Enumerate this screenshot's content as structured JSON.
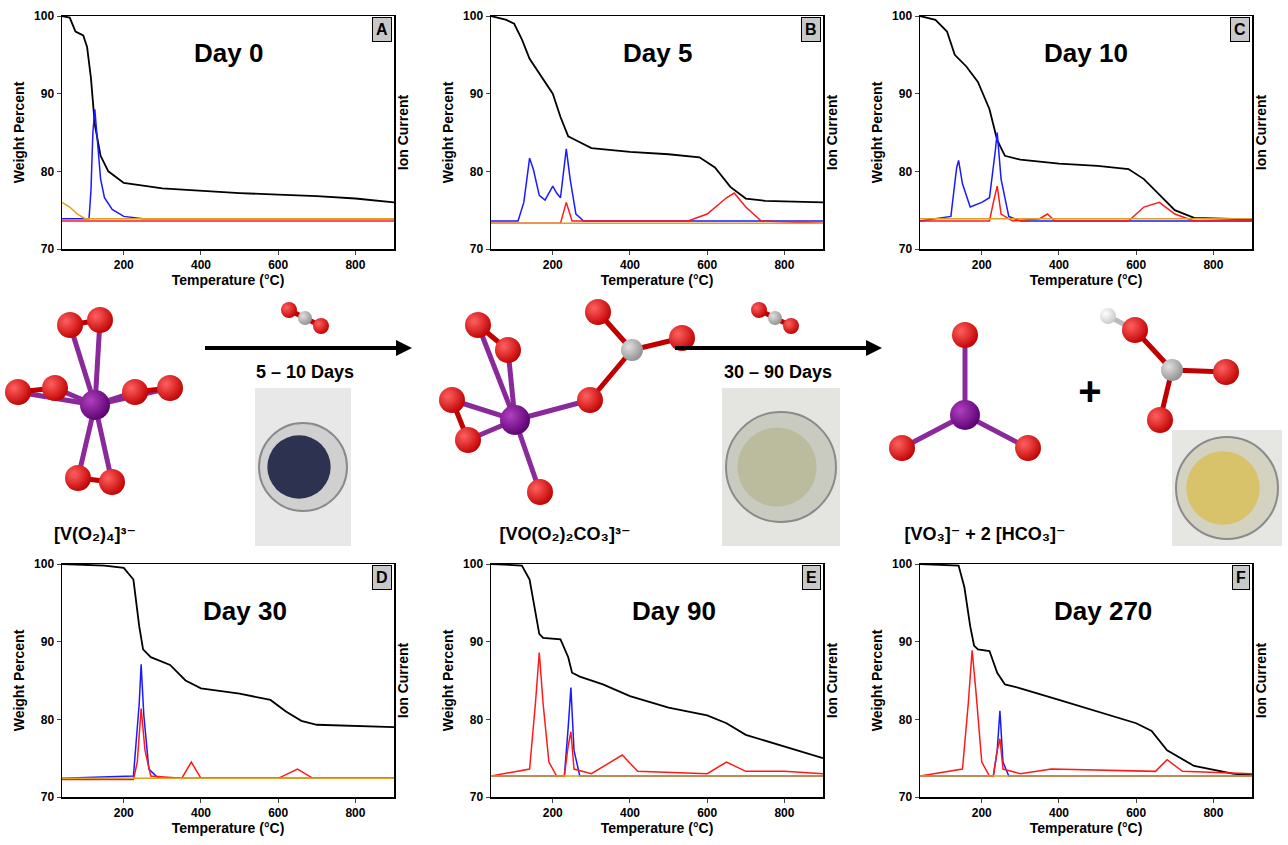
{
  "chart_data": [
    {
      "type": "line",
      "title": "Day 0",
      "panel": "A",
      "x_label": "Temperature (°C)",
      "y_label": "Weight Percent",
      "y2_label": "Ion Current",
      "xlim": [
        40,
        900
      ],
      "xticks": [
        200,
        400,
        600,
        800
      ],
      "ylim": [
        70,
        100
      ],
      "yticks": [
        70,
        80,
        90,
        100
      ],
      "y2lim": [
        0,
        100
      ],
      "y2ticks": [],
      "series": [
        {
          "color": "#000000",
          "x": [
            40,
            60,
            75,
            95,
            105,
            115,
            125,
            140,
            160,
            200,
            300,
            400,
            500,
            600,
            700,
            800,
            900
          ],
          "values": [
            100,
            99.8,
            98,
            97.5,
            96,
            92,
            86,
            82,
            80,
            78.5,
            77.8,
            77.5,
            77.2,
            77,
            76.8,
            76.5,
            76
          ]
        },
        {
          "color": "#1a1aff",
          "axis": "y2",
          "x": [
            40,
            110,
            115,
            120,
            125,
            130,
            140,
            150,
            170,
            200,
            250,
            900
          ],
          "values": [
            13,
            13,
            25,
            50,
            60,
            50,
            30,
            22,
            17,
            14,
            13,
            13
          ]
        },
        {
          "color": "#ff1a1a",
          "axis": "y2",
          "x": [
            40,
            900
          ],
          "values": [
            12,
            12
          ]
        },
        {
          "color": "#e0a020",
          "axis": "y2",
          "x": [
            40,
            60,
            80,
            100,
            900
          ],
          "values": [
            20,
            18,
            15,
            13,
            13
          ]
        }
      ]
    },
    {
      "type": "line",
      "title": "Day 5",
      "panel": "B",
      "x_label": "Temperature (°C)",
      "y_label": "Weight Percent",
      "y2_label": "Ion Current",
      "xlim": [
        40,
        900
      ],
      "xticks": [
        200,
        400,
        600,
        800
      ],
      "ylim": [
        70,
        100
      ],
      "yticks": [
        70,
        80,
        90,
        100
      ],
      "y2lim": [
        0,
        100
      ],
      "y2ticks": [],
      "series": [
        {
          "color": "#000000",
          "x": [
            40,
            80,
            100,
            120,
            140,
            160,
            180,
            200,
            220,
            240,
            260,
            300,
            400,
            500,
            580,
            620,
            660,
            700,
            750,
            900
          ],
          "values": [
            100,
            99.5,
            99,
            97,
            94.5,
            93,
            91.5,
            90,
            87,
            84.5,
            84,
            83,
            82.5,
            82.2,
            81.8,
            80.5,
            78,
            76.5,
            76.2,
            76
          ]
        },
        {
          "color": "#1a1aff",
          "axis": "y2",
          "x": [
            40,
            110,
            125,
            140,
            150,
            165,
            180,
            200,
            210,
            220,
            235,
            245,
            260,
            280,
            900
          ],
          "values": [
            12,
            12,
            20,
            39,
            34,
            23,
            21,
            27,
            24,
            22,
            43,
            30,
            15,
            12,
            12
          ]
        },
        {
          "color": "#ff1a1a",
          "axis": "y2",
          "x": [
            40,
            220,
            235,
            250,
            550,
            600,
            650,
            670,
            700,
            740,
            900
          ],
          "values": [
            11,
            11,
            20,
            12,
            12,
            15,
            22,
            24,
            18,
            12,
            11
          ]
        },
        {
          "color": "#e0a020",
          "axis": "y2",
          "x": [
            40,
            900
          ],
          "values": [
            11,
            11
          ]
        }
      ]
    },
    {
      "type": "line",
      "title": "Day 10",
      "panel": "C",
      "x_label": "Temperature (°C)",
      "y_label": "Weight Percent",
      "y2_label": "Ion Current",
      "xlim": [
        40,
        900
      ],
      "xticks": [
        200,
        400,
        600,
        800
      ],
      "ylim": [
        70,
        100
      ],
      "yticks": [
        70,
        80,
        90,
        100
      ],
      "y2lim": [
        0,
        100
      ],
      "y2ticks": [],
      "series": [
        {
          "color": "#000000",
          "x": [
            40,
            80,
            110,
            130,
            160,
            190,
            220,
            240,
            260,
            300,
            400,
            500,
            580,
            620,
            660,
            700,
            750,
            900
          ],
          "values": [
            100,
            99.5,
            98,
            95,
            93.5,
            91.5,
            88,
            84,
            82,
            81.5,
            81,
            80.7,
            80.3,
            79,
            77,
            75,
            74,
            73.8
          ]
        },
        {
          "color": "#1a1aff",
          "axis": "y2",
          "x": [
            40,
            120,
            135,
            140,
            150,
            170,
            200,
            220,
            235,
            240,
            250,
            270,
            300,
            900
          ],
          "values": [
            12,
            14,
            35,
            38,
            28,
            18,
            20,
            22,
            42,
            50,
            30,
            14,
            12,
            12
          ]
        },
        {
          "color": "#ff1a1a",
          "axis": "y2",
          "x": [
            40,
            220,
            230,
            240,
            250,
            280,
            350,
            370,
            390,
            580,
            620,
            660,
            700,
            750,
            900
          ],
          "values": [
            12,
            12,
            20,
            27,
            15,
            12,
            13,
            15,
            12,
            12,
            18,
            20,
            15,
            12,
            12
          ]
        },
        {
          "color": "#e0a020",
          "axis": "y2",
          "x": [
            40,
            900
          ],
          "values": [
            13,
            13
          ]
        }
      ]
    },
    {
      "type": "line",
      "title": "Day 30",
      "panel": "D",
      "x_label": "Temperature (°C)",
      "y_label": "Weight Percent",
      "y2_label": "Ion Current",
      "xlim": [
        40,
        900
      ],
      "xticks": [
        200,
        400,
        600,
        800
      ],
      "ylim": [
        70,
        100
      ],
      "yticks": [
        70,
        80,
        90,
        100
      ],
      "y2lim": [
        0,
        100
      ],
      "y2ticks": [],
      "series": [
        {
          "color": "#000000",
          "x": [
            40,
            150,
            200,
            225,
            240,
            250,
            270,
            320,
            360,
            400,
            500,
            580,
            620,
            660,
            700,
            900
          ],
          "values": [
            100,
            99.8,
            99.5,
            98,
            92,
            89,
            88,
            87,
            85,
            84,
            83.3,
            82.5,
            81,
            79.8,
            79.3,
            79
          ]
        },
        {
          "color": "#1a1aff",
          "axis": "y2",
          "x": [
            40,
            225,
            240,
            245,
            252,
            265,
            290,
            900
          ],
          "values": [
            8,
            9,
            40,
            57,
            35,
            12,
            8,
            8
          ]
        },
        {
          "color": "#ff1a1a",
          "axis": "y2",
          "x": [
            40,
            225,
            235,
            245,
            255,
            270,
            350,
            375,
            400,
            600,
            650,
            690,
            900
          ],
          "values": [
            7.5,
            7.5,
            15,
            38,
            20,
            9,
            8,
            15,
            8,
            8,
            12,
            8,
            8
          ]
        },
        {
          "color": "#e0a020",
          "axis": "y2",
          "x": [
            40,
            900
          ],
          "values": [
            8,
            8
          ]
        }
      ]
    },
    {
      "type": "line",
      "title": "Day 90",
      "panel": "E",
      "x_label": "Temperature (°C)",
      "y_label": "Weight Percent",
      "y2_label": "Ion Current",
      "xlim": [
        40,
        900
      ],
      "xticks": [
        200,
        400,
        600,
        800
      ],
      "ylim": [
        70,
        100
      ],
      "yticks": [
        70,
        80,
        90,
        100
      ],
      "y2lim": [
        0,
        100
      ],
      "y2ticks": [],
      "series": [
        {
          "color": "#000000",
          "x": [
            40,
            120,
            140,
            155,
            165,
            175,
            220,
            240,
            250,
            270,
            330,
            400,
            500,
            600,
            650,
            700,
            800,
            900
          ],
          "values": [
            100,
            99.8,
            98,
            94,
            91,
            90.5,
            90.3,
            88,
            86,
            85.5,
            84.5,
            83,
            81.5,
            80.5,
            79.5,
            78,
            76.5,
            75
          ]
        },
        {
          "color": "#1a1aff",
          "axis": "y2",
          "x": [
            40,
            230,
            240,
            247,
            255,
            270,
            900
          ],
          "values": [
            9,
            9,
            30,
            47,
            20,
            9,
            9
          ]
        },
        {
          "color": "#ff1a1a",
          "axis": "y2",
          "x": [
            40,
            140,
            155,
            165,
            175,
            190,
            210,
            230,
            240,
            247,
            255,
            300,
            380,
            420,
            600,
            650,
            700,
            800,
            900
          ],
          "values": [
            9,
            12,
            40,
            62,
            40,
            15,
            9,
            9,
            22,
            28,
            12,
            10,
            18,
            11,
            10,
            15,
            11,
            11,
            10
          ]
        },
        {
          "color": "#e0a020",
          "axis": "y2",
          "x": [
            40,
            900
          ],
          "values": [
            9,
            9
          ]
        }
      ]
    },
    {
      "type": "line",
      "title": "Day 270",
      "panel": "F",
      "x_label": "Temperature (°C)",
      "y_label": "Weight Percent",
      "y2_label": "Ion Current",
      "xlim": [
        40,
        900
      ],
      "xticks": [
        200,
        400,
        600,
        800
      ],
      "ylim": [
        70,
        100
      ],
      "yticks": [
        70,
        80,
        90,
        100
      ],
      "y2lim": [
        0,
        100
      ],
      "y2ticks": [],
      "series": [
        {
          "color": "#000000",
          "x": [
            40,
            140,
            155,
            170,
            180,
            190,
            220,
            240,
            260,
            300,
            400,
            500,
            600,
            640,
            680,
            750,
            850,
            900
          ],
          "values": [
            100,
            99.8,
            97,
            92,
            89.5,
            89,
            88.8,
            86,
            84.5,
            84,
            82.5,
            81,
            79.5,
            78.5,
            76,
            74,
            73,
            72.8
          ]
        },
        {
          "color": "#1a1aff",
          "axis": "y2",
          "x": [
            40,
            230,
            240,
            247,
            255,
            270,
            900
          ],
          "values": [
            9,
            9,
            20,
            37,
            15,
            9,
            9
          ]
        },
        {
          "color": "#ff1a1a",
          "axis": "y2",
          "x": [
            40,
            150,
            165,
            175,
            185,
            200,
            220,
            230,
            240,
            247,
            255,
            300,
            380,
            650,
            680,
            720,
            900
          ],
          "values": [
            9,
            12,
            40,
            63,
            45,
            15,
            9,
            9,
            20,
            25,
            12,
            10,
            12,
            11,
            16,
            11,
            10
          ]
        },
        {
          "color": "#e0a020",
          "axis": "y2",
          "x": [
            40,
            900
          ],
          "values": [
            9,
            9
          ]
        }
      ]
    }
  ],
  "scheme": {
    "reactant": "[V(O₂)₄]³⁻",
    "step1": "5 – 10 Days",
    "intermediate": "[VO(O₂)₂CO₃]³⁻",
    "step2": "30 – 90 Days",
    "products": "[VO₃]⁻ + 2 [HCO₃]⁻",
    "plus": "+"
  }
}
